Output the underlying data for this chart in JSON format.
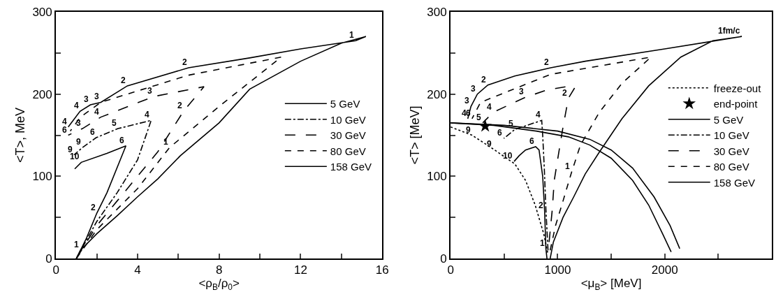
{
  "chart_data": [
    {
      "type": "line",
      "xlabel": "<ρ$_{B}$/ρ$_{0}$>",
      "ylabel": "<T>, MeV",
      "xlim": [
        0,
        16
      ],
      "ylim": [
        0,
        300
      ],
      "xticks": [
        0,
        {
          "value": 2,
          "label": null
        },
        4,
        {
          "value": 6,
          "label": null
        },
        8,
        {
          "value": 10,
          "label": null
        },
        12,
        {
          "value": 14,
          "label": null
        },
        16
      ],
      "yticks": [
        0,
        {
          "value": 50,
          "label": null
        },
        100,
        {
          "value": 150,
          "label": null
        },
        200,
        {
          "value": 250,
          "label": null
        },
        300
      ],
      "grid": false,
      "legend": "right",
      "marker": "none",
      "series": [
        {
          "name": "5 GeV",
          "color": "#000000",
          "line_style": "solid",
          "x": [
            1.0,
            1.5,
            2.0,
            2.5,
            3.43,
            2.5,
            1.24,
            0.92
          ],
          "values": [
            0,
            25,
            55,
            80,
            137,
            128,
            117,
            109
          ]
        },
        {
          "name": "10 GeV",
          "color": "#000000",
          "line_style": "dashdot",
          "x": [
            1.0,
            2.0,
            3.0,
            4.0,
            4.67,
            3.04,
            1.97,
            1.3,
            0.88
          ],
          "values": [
            0,
            45,
            80,
            120,
            168,
            158,
            147,
            135,
            126
          ]
        },
        {
          "name": "30 GeV",
          "color": "#000000",
          "line_style": "longdash",
          "x": [
            1.0,
            2.0,
            3.0,
            4.0,
            5.0,
            6.25,
            7.26,
            4.79,
            2.2,
            1.3,
            0.6
          ],
          "values": [
            0,
            40,
            70,
            100,
            130,
            179,
            209,
            197,
            172,
            158,
            150
          ]
        },
        {
          "name": "80 GeV",
          "color": "#000000",
          "line_style": "dash",
          "x": [
            1.0,
            2.0,
            3.0,
            4.0,
            5.57,
            8.0,
            11.05,
            6.5,
            2.2,
            1.2,
            0.7
          ],
          "values": [
            0,
            35,
            60,
            85,
            135,
            185,
            245,
            223,
            190,
            172,
            155
          ]
        },
        {
          "name": "158 GeV",
          "color": "#000000",
          "line_style": "solid",
          "x": [
            1.0,
            1.2,
            2.0,
            3.0,
            4.0,
            5.0,
            6.1,
            8.0,
            9.5,
            12.0,
            14.0,
            15.2,
            14.7,
            12.0,
            9.5,
            6.5,
            3.5,
            2.2,
            1.69,
            1.18,
            0.6
          ],
          "values": [
            0,
            10,
            30,
            52,
            75,
            97,
            125,
            165,
            206,
            240,
            262,
            270,
            265,
            255,
            244,
            232,
            210,
            190,
            187,
            179,
            160
          ]
        }
      ],
      "annotations": [
        {
          "text": "1",
          "x": 14.7,
          "y": 265
        },
        {
          "text": "2",
          "x": 6.5,
          "y": 232
        },
        {
          "text": "2",
          "x": 3.5,
          "y": 210
        },
        {
          "text": "3",
          "x": 2.2,
          "y": 190
        },
        {
          "text": "3",
          "x": 1.69,
          "y": 187
        },
        {
          "text": "4",
          "x": 1.18,
          "y": 179
        },
        {
          "text": "4",
          "x": 0.6,
          "y": 160
        },
        {
          "text": "4",
          "x": 2.2,
          "y": 172
        },
        {
          "text": "3",
          "x": 1.3,
          "y": 158
        },
        {
          "text": "6",
          "x": 0.6,
          "y": 150
        },
        {
          "text": "9",
          "x": 0.88,
          "y": 126
        },
        {
          "text": "3",
          "x": 4.79,
          "y": 197
        },
        {
          "text": "2",
          "x": 6.25,
          "y": 179
        },
        {
          "text": "4",
          "x": 4.67,
          "y": 168
        },
        {
          "text": "5",
          "x": 3.04,
          "y": 158
        },
        {
          "text": "6",
          "x": 1.97,
          "y": 147
        },
        {
          "text": "6",
          "x": 3.43,
          "y": 137
        },
        {
          "text": "1",
          "x": 5.57,
          "y": 135
        },
        {
          "text": "9",
          "x": 1.3,
          "y": 135
        },
        {
          "text": "10",
          "x": 1.24,
          "y": 117
        },
        {
          "text": "2",
          "x": 2.0,
          "y": 55
        },
        {
          "text": "1",
          "x": 1.2,
          "y": 10
        }
      ]
    },
    {
      "type": "line",
      "xlabel": "<μ$_{B}$> [MeV]",
      "ylabel": "<T> [MeV]",
      "xlim": [
        0,
        3000
      ],
      "ylim": [
        0,
        300
      ],
      "xticks": [
        0,
        {
          "value": 500,
          "label": null
        },
        1000,
        {
          "value": 1500,
          "label": null
        },
        2000,
        {
          "value": 2500,
          "label": null
        }
      ],
      "yticks": [
        0,
        {
          "value": 50,
          "label": null
        },
        100,
        {
          "value": 150,
          "label": null
        },
        200,
        {
          "value": 250,
          "label": null
        },
        300
      ],
      "grid": false,
      "legend": "right",
      "marker": "none",
      "series": [
        {
          "name": "freeze-out",
          "color": "#000000",
          "line_style": "dot",
          "x": [
            0,
            200,
            400,
            600,
            700,
            790,
            870,
            910
          ],
          "values": [
            160,
            150,
            133,
            115,
            95,
            65,
            30,
            5
          ]
        },
        {
          "name": "end-point",
          "type": "scatter",
          "marker": "star",
          "color": "#000000",
          "x": [
            323
          ],
          "values": [
            161
          ]
        },
        {
          "name": "5 GeV",
          "color": "#000000",
          "line_style": "solid",
          "x": [
            900,
            890,
            878,
            860,
            826,
            794,
            700,
            640,
            593
          ],
          "values": [
            0,
            12,
            58,
            100,
            132,
            136,
            132,
            125,
            118
          ]
        },
        {
          "name": "10 GeV",
          "color": "#000000",
          "line_style": "dashdot",
          "x": [
            910,
            890,
            875,
            860,
            851,
            600,
            497
          ],
          "values": [
            10,
            60,
            110,
            150,
            168,
            157,
            146
          ]
        },
        {
          "name": "30 GeV",
          "color": "#000000",
          "line_style": "longdash",
          "x": [
            920,
            950,
            968,
            1013,
            1050,
            1100,
            1161,
            1120,
            900,
            697,
            400,
            300
          ],
          "values": [
            20,
            60,
            95,
            131,
            160,
            195,
            208,
            210,
            205,
            196,
            178,
            165
          ]
        },
        {
          "name": "80 GeV",
          "color": "#000000",
          "line_style": "dash",
          "x": [
            930,
            980,
            1050,
            1130,
            1213,
            1390,
            1600,
            1871,
            935,
            280,
            200
          ],
          "values": [
            10,
            40,
            70,
            105,
            138,
            178,
            213,
            245,
            224,
            190,
            170
          ]
        },
        {
          "name": "158 GeV",
          "color": "#000000",
          "line_style": "solid",
          "x": [
            930,
            960,
            1050,
            1150,
            1258,
            1387,
            1600,
            1850,
            2150,
            2450,
            2720,
            2000,
            1258,
            935,
            600,
            348,
            250,
            190,
            160
          ],
          "values": [
            0,
            20,
            50,
            75,
            103,
            129,
            170,
            210,
            245,
            265,
            270,
            255,
            240,
            232,
            222,
            211,
            200,
            185,
            170
          ]
        },
        {
          "type": "line",
          "color": "#000000",
          "line_style": "solid",
          "x": [
            0,
            400,
            800,
            1100,
            1300,
            1500,
            1700,
            1850,
            1980,
            2060
          ],
          "values": [
            165,
            162,
            155,
            148,
            138,
            122,
            95,
            65,
            30,
            8
          ]
        },
        {
          "type": "line",
          "color": "#000000",
          "line_style": "solid",
          "x": [
            0,
            500,
            1000,
            1300,
            1500,
            1700,
            1900,
            2050,
            2140
          ],
          "values": [
            165,
            162,
            155,
            145,
            132,
            110,
            75,
            40,
            12
          ]
        }
      ],
      "annotations": [
        {
          "text": "1fm/c",
          "x": 2720,
          "y": 270
        },
        {
          "text": "2",
          "x": 935,
          "y": 232
        },
        {
          "text": "2",
          "x": 348,
          "y": 211
        },
        {
          "text": "3",
          "x": 250,
          "y": 200
        },
        {
          "text": "3",
          "x": 190,
          "y": 185
        },
        {
          "text": "4",
          "x": 160,
          "y": 170
        },
        {
          "text": "6",
          "x": 200,
          "y": 170
        },
        {
          "text": "3",
          "x": 697,
          "y": 196
        },
        {
          "text": "4",
          "x": 400,
          "y": 178
        },
        {
          "text": "5",
          "x": 300,
          "y": 165
        },
        {
          "text": "4",
          "x": 851,
          "y": 168
        },
        {
          "text": "5",
          "x": 600,
          "y": 157
        },
        {
          "text": "6",
          "x": 497,
          "y": 146
        },
        {
          "text": "9",
          "x": 400,
          "y": 133
        },
        {
          "text": "9",
          "x": 200,
          "y": 150
        },
        {
          "text": "10",
          "x": 593,
          "y": 118
        },
        {
          "text": "6",
          "x": 794,
          "y": 136
        },
        {
          "text": "2",
          "x": 1100,
          "y": 195
        },
        {
          "text": "1",
          "x": 1130,
          "y": 105
        },
        {
          "text": "2",
          "x": 878,
          "y": 58
        },
        {
          "text": "1",
          "x": 890,
          "y": 12
        }
      ]
    }
  ]
}
